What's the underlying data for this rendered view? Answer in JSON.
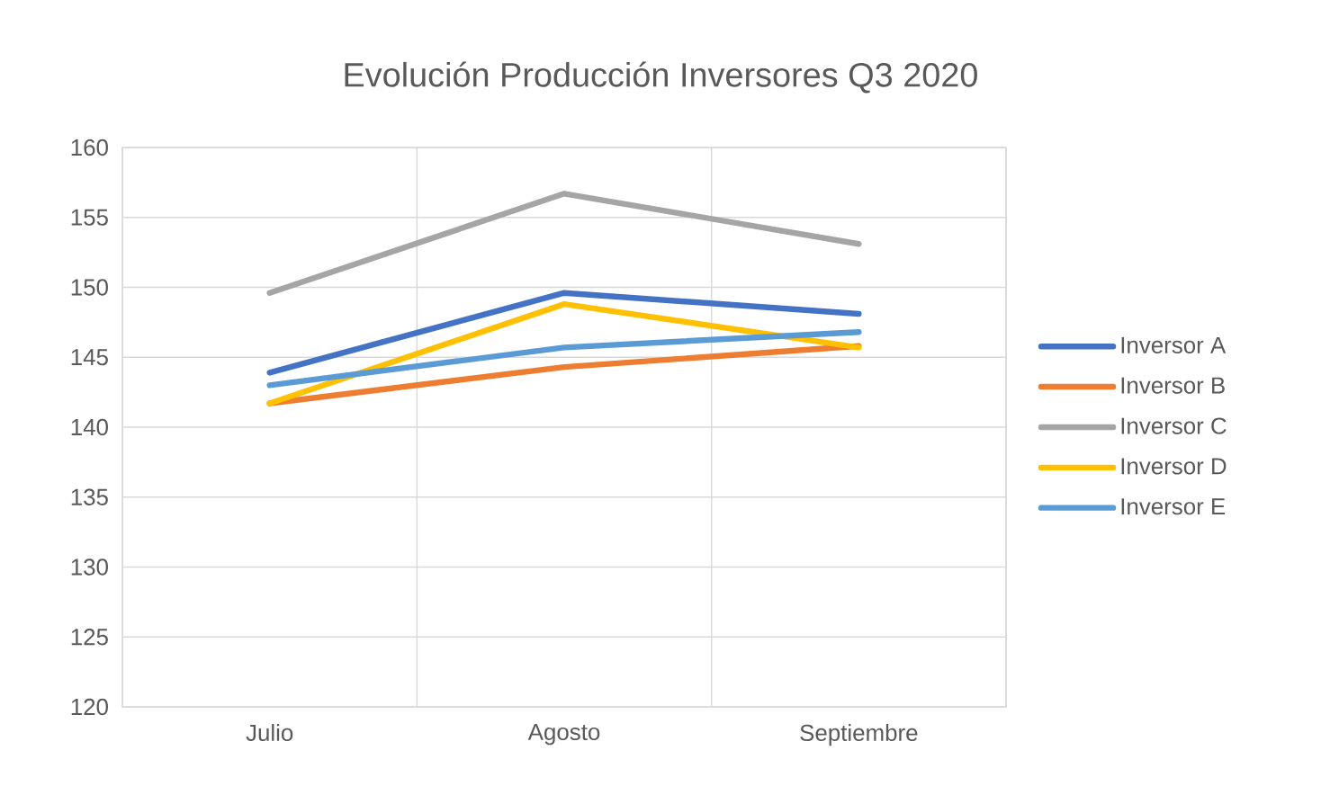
{
  "chart_data": {
    "type": "line",
    "title": "Evolución Producción Inversores  Q3 2020",
    "categories": [
      "Julio",
      "Agosto",
      "Septiembre"
    ],
    "series": [
      {
        "name": "Inversor A",
        "color": "#4472c4",
        "values": [
          143.9,
          149.6,
          148.1
        ]
      },
      {
        "name": "Inversor B",
        "color": "#ed7d31",
        "values": [
          141.7,
          144.3,
          145.8
        ]
      },
      {
        "name": "Inversor C",
        "color": "#a5a5a5",
        "values": [
          149.6,
          156.7,
          153.1
        ]
      },
      {
        "name": "Inversor D",
        "color": "#ffc000",
        "values": [
          141.7,
          148.8,
          145.7
        ]
      },
      {
        "name": "Inversor E",
        "color": "#5b9bd5",
        "values": [
          143.0,
          145.7,
          146.8
        ]
      }
    ],
    "ylim": [
      120,
      160
    ],
    "yticks": [
      120,
      125,
      130,
      135,
      140,
      145,
      150,
      155,
      160
    ],
    "grid": true,
    "legend": "right",
    "marker": "none",
    "line_style": "solid"
  }
}
